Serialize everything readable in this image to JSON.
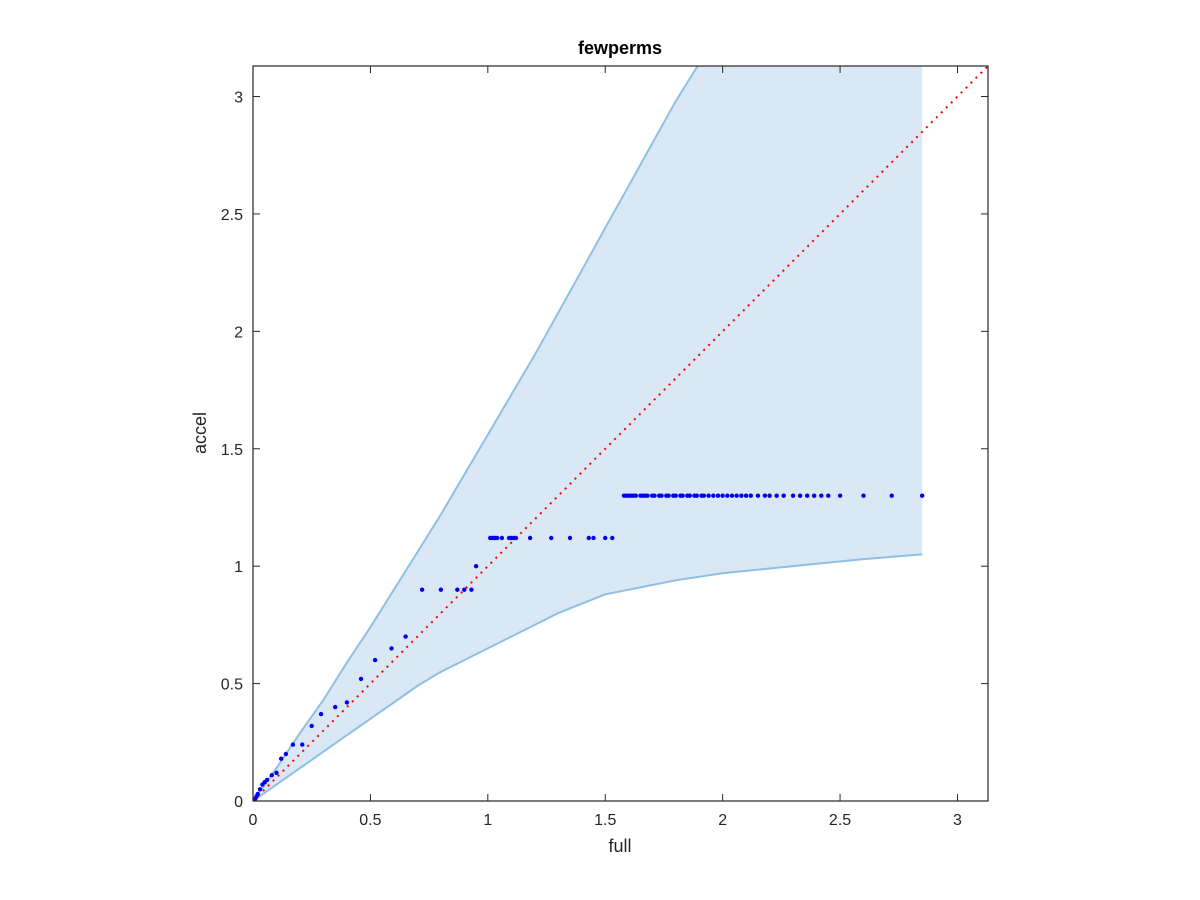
{
  "chart_data": {
    "type": "scatter",
    "title": "fewperms",
    "xlabel": "full",
    "ylabel": "accel",
    "xlim": [
      0,
      3.13
    ],
    "ylim": [
      0,
      3.13
    ],
    "xticks": [
      0,
      0.5,
      1,
      1.5,
      2,
      2.5,
      3
    ],
    "xtick_labels": [
      "0",
      "0.5",
      "1",
      "1.5",
      "2",
      "2.5",
      "3"
    ],
    "yticks": [
      0,
      0.5,
      1,
      1.5,
      2,
      2.5,
      3
    ],
    "ytick_labels": [
      "0",
      "0.5",
      "1",
      "1.5",
      "2",
      "2.5",
      "3"
    ],
    "grid": false,
    "colors": {
      "points": "#0000ee",
      "band_fill": "#d9e8f4",
      "band_edge": "#8fc0e3",
      "reference_line": "#ff0000",
      "axes": "#262626"
    },
    "reference_line": {
      "x": [
        0,
        3.13
      ],
      "y": [
        0,
        3.13
      ],
      "style": "dotted"
    },
    "band": {
      "x": [
        0,
        0.1,
        0.2,
        0.3,
        0.4,
        0.5,
        0.6,
        0.7,
        0.8,
        0.9,
        1.0,
        1.1,
        1.2,
        1.3,
        1.4,
        1.5,
        1.6,
        1.8,
        2.0,
        2.2,
        2.4,
        2.6,
        2.85
      ],
      "upper": [
        0,
        0.14,
        0.29,
        0.43,
        0.59,
        0.74,
        0.9,
        1.06,
        1.22,
        1.39,
        1.56,
        1.73,
        1.9,
        2.08,
        2.26,
        2.44,
        2.62,
        2.98,
        3.3,
        3.62,
        3.9,
        4.2,
        4.55
      ],
      "lower": [
        0,
        0.07,
        0.14,
        0.21,
        0.28,
        0.35,
        0.42,
        0.49,
        0.55,
        0.6,
        0.65,
        0.7,
        0.75,
        0.8,
        0.84,
        0.88,
        0.9,
        0.94,
        0.97,
        0.99,
        1.01,
        1.03,
        1.05
      ]
    },
    "series": [
      {
        "points": [
          [
            0.005,
            0.005
          ],
          [
            0.01,
            0.01
          ],
          [
            0.015,
            0.02
          ],
          [
            0.02,
            0.03
          ],
          [
            0.03,
            0.05
          ],
          [
            0.04,
            0.07
          ],
          [
            0.05,
            0.08
          ],
          [
            0.06,
            0.09
          ],
          [
            0.08,
            0.11
          ],
          [
            0.1,
            0.12
          ],
          [
            0.12,
            0.18
          ],
          [
            0.14,
            0.2
          ],
          [
            0.17,
            0.24
          ],
          [
            0.21,
            0.24
          ],
          [
            0.25,
            0.32
          ],
          [
            0.29,
            0.37
          ],
          [
            0.35,
            0.4
          ],
          [
            0.4,
            0.42
          ],
          [
            0.46,
            0.52
          ],
          [
            0.52,
            0.6
          ],
          [
            0.59,
            0.65
          ],
          [
            0.65,
            0.7
          ],
          [
            0.72,
            0.9
          ],
          [
            0.8,
            0.9
          ],
          [
            0.87,
            0.9
          ],
          [
            0.9,
            0.9
          ],
          [
            0.93,
            0.9
          ],
          [
            0.95,
            1.0
          ],
          [
            1.01,
            1.12
          ],
          [
            1.02,
            1.12
          ],
          [
            1.03,
            1.12
          ],
          [
            1.04,
            1.12
          ],
          [
            1.06,
            1.12
          ],
          [
            1.09,
            1.12
          ],
          [
            1.1,
            1.12
          ],
          [
            1.11,
            1.12
          ],
          [
            1.12,
            1.12
          ],
          [
            1.18,
            1.12
          ],
          [
            1.27,
            1.12
          ],
          [
            1.35,
            1.12
          ],
          [
            1.43,
            1.12
          ],
          [
            1.45,
            1.12
          ],
          [
            1.5,
            1.12
          ],
          [
            1.53,
            1.12
          ],
          [
            1.58,
            1.3
          ],
          [
            1.59,
            1.3
          ],
          [
            1.6,
            1.3
          ],
          [
            1.61,
            1.3
          ],
          [
            1.62,
            1.3
          ],
          [
            1.63,
            1.3
          ],
          [
            1.65,
            1.3
          ],
          [
            1.66,
            1.3
          ],
          [
            1.67,
            1.3
          ],
          [
            1.68,
            1.3
          ],
          [
            1.7,
            1.3
          ],
          [
            1.71,
            1.3
          ],
          [
            1.73,
            1.3
          ],
          [
            1.74,
            1.3
          ],
          [
            1.76,
            1.3
          ],
          [
            1.77,
            1.3
          ],
          [
            1.79,
            1.3
          ],
          [
            1.8,
            1.3
          ],
          [
            1.82,
            1.3
          ],
          [
            1.83,
            1.3
          ],
          [
            1.85,
            1.3
          ],
          [
            1.86,
            1.3
          ],
          [
            1.88,
            1.3
          ],
          [
            1.89,
            1.3
          ],
          [
            1.91,
            1.3
          ],
          [
            1.92,
            1.3
          ],
          [
            1.94,
            1.3
          ],
          [
            1.96,
            1.3
          ],
          [
            1.98,
            1.3
          ],
          [
            2.0,
            1.3
          ],
          [
            2.02,
            1.3
          ],
          [
            2.04,
            1.3
          ],
          [
            2.06,
            1.3
          ],
          [
            2.08,
            1.3
          ],
          [
            2.1,
            1.3
          ],
          [
            2.12,
            1.3
          ],
          [
            2.15,
            1.3
          ],
          [
            2.18,
            1.3
          ],
          [
            2.2,
            1.3
          ],
          [
            2.23,
            1.3
          ],
          [
            2.26,
            1.3
          ],
          [
            2.3,
            1.3
          ],
          [
            2.33,
            1.3
          ],
          [
            2.36,
            1.3
          ],
          [
            2.39,
            1.3
          ],
          [
            2.42,
            1.3
          ],
          [
            2.45,
            1.3
          ],
          [
            2.5,
            1.3
          ],
          [
            2.6,
            1.3
          ],
          [
            2.72,
            1.3
          ],
          [
            2.85,
            1.3
          ]
        ]
      }
    ]
  }
}
